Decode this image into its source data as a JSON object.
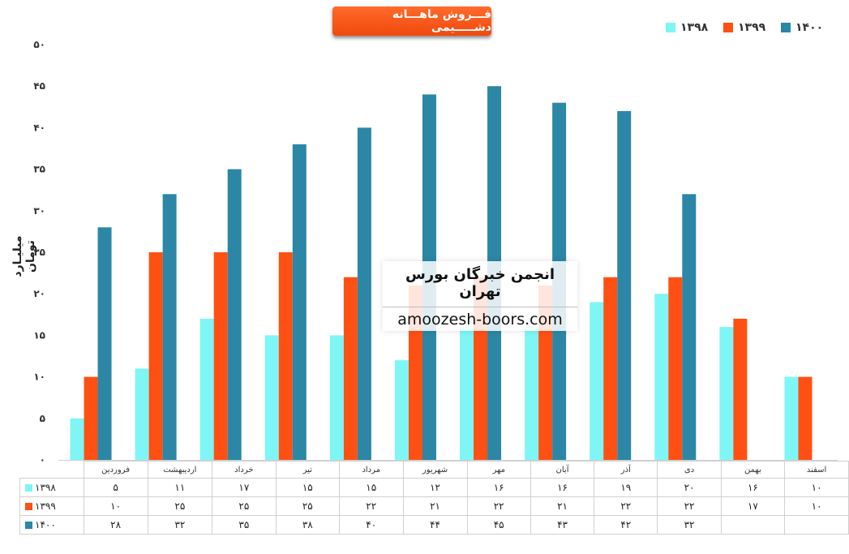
{
  "chart_data": {
    "type": "bar",
    "title": "فـــروش ماهـــانه دشـــــیمی",
    "ylabel": "میلیـارد تومان",
    "ylim": [
      0,
      50
    ],
    "yticks": [
      "۰",
      "۵",
      "۱۰",
      "۱۵",
      "۲۰",
      "۲۵",
      "۳۰",
      "۳۵",
      "۴۰",
      "۴۵",
      "۵۰"
    ],
    "ytick_values": [
      0,
      5,
      10,
      15,
      20,
      25,
      30,
      35,
      40,
      45,
      50
    ],
    "categories": [
      "فروردین",
      "اردیبهشت",
      "خرداد",
      "تیر",
      "مرداد",
      "شهریور",
      "مهر",
      "آبان",
      "آذر",
      "دی",
      "بهمن",
      "اسفند"
    ],
    "series": [
      {
        "name": "۱۳۹۸",
        "color": "#7ef6f6",
        "values": [
          5,
          11,
          17,
          15,
          15,
          12,
          16,
          16,
          19,
          20,
          16,
          10
        ],
        "labels": [
          "۵",
          "۱۱",
          "۱۷",
          "۱۵",
          "۱۵",
          "۱۲",
          "۱۶",
          "۱۶",
          "۱۹",
          "۲۰",
          "۱۶",
          "۱۰"
        ]
      },
      {
        "name": "۱۳۹۹",
        "color": "#ff5014",
        "values": [
          10,
          25,
          25,
          25,
          22,
          21,
          22,
          21,
          22,
          22,
          17,
          10
        ],
        "labels": [
          "۱۰",
          "۲۵",
          "۲۵",
          "۲۵",
          "۲۲",
          "۲۱",
          "۲۲",
          "۲۱",
          "۲۲",
          "۲۲",
          "۱۷",
          "۱۰"
        ]
      },
      {
        "name": "۱۴۰۰",
        "color": "#2b87a5",
        "values": [
          28,
          32,
          35,
          38,
          40,
          44,
          45,
          43,
          42,
          32,
          null,
          null
        ],
        "labels": [
          "۲۸",
          "۳۲",
          "۳۵",
          "۳۸",
          "۴۰",
          "۴۴",
          "۴۵",
          "۴۳",
          "۴۲",
          "۳۲",
          "",
          ""
        ]
      }
    ],
    "legend_position": "top-right",
    "grid": false
  },
  "watermark": {
    "title": "انجمن خبرگان بورس تهران",
    "url": "amoozesh-boors.com"
  }
}
